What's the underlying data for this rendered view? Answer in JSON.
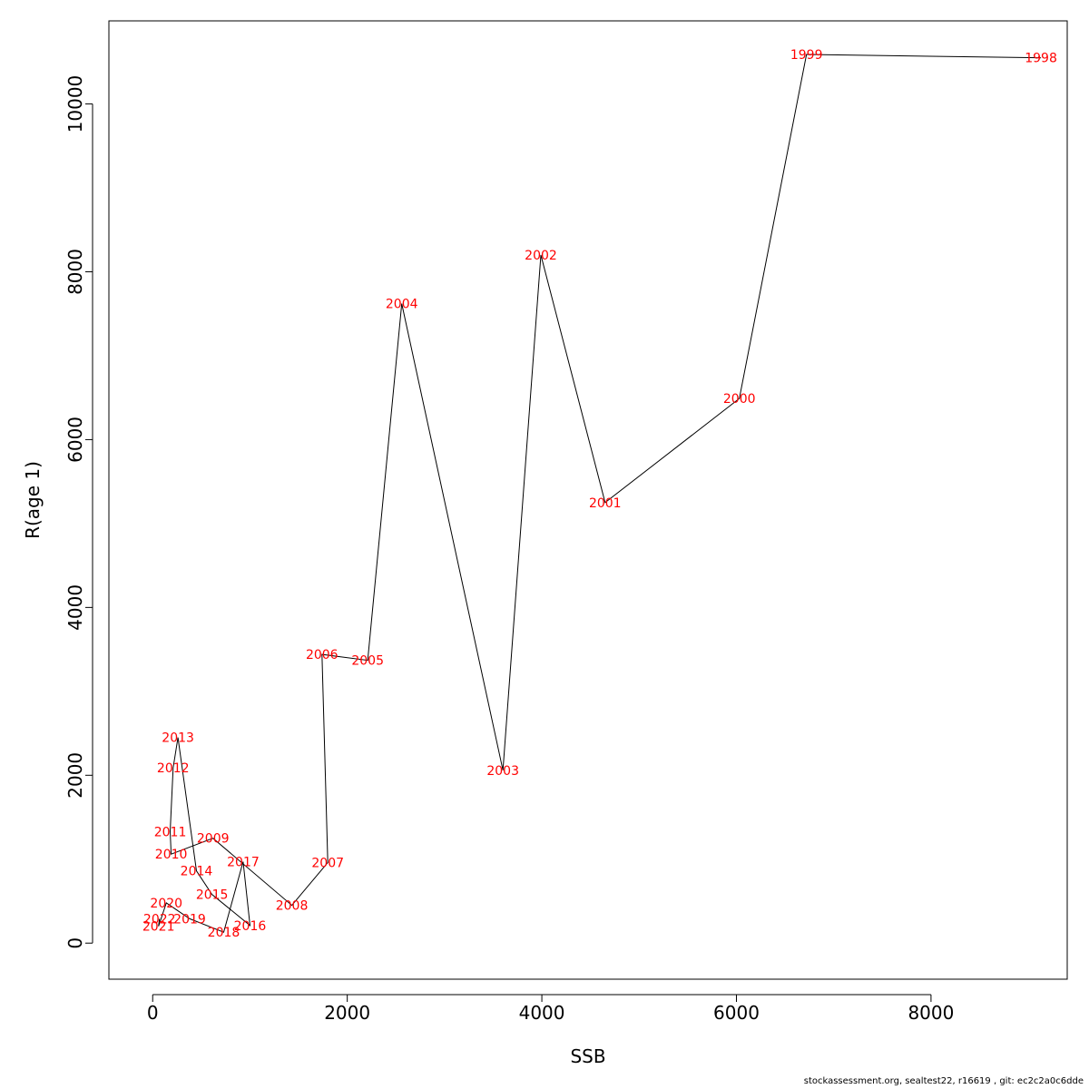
{
  "chart_data": {
    "type": "line",
    "title": "",
    "xlabel": "SSB",
    "ylabel": "R(age 1)",
    "xlim": [
      -450,
      9400
    ],
    "ylim": [
      -430,
      10990
    ],
    "xticks": [
      0,
      2000,
      4000,
      6000,
      8000
    ],
    "yticks": [
      0,
      2000,
      4000,
      6000,
      8000,
      10000
    ],
    "x_tick_labels": [
      "0",
      "2000",
      "4000",
      "6000",
      "8000"
    ],
    "y_tick_labels": [
      "0",
      "2000",
      "4000",
      "6000",
      "8000",
      "10000"
    ],
    "grid": false,
    "line_color": "#000000",
    "label_color": "#ff0000",
    "points": [
      {
        "year": "1998",
        "x": 9130,
        "y": 10550
      },
      {
        "year": "1999",
        "x": 6720,
        "y": 10590
      },
      {
        "year": "2000",
        "x": 6030,
        "y": 6490
      },
      {
        "year": "2001",
        "x": 4650,
        "y": 5250
      },
      {
        "year": "2002",
        "x": 3990,
        "y": 8200
      },
      {
        "year": "2003",
        "x": 3600,
        "y": 2060
      },
      {
        "year": "2004",
        "x": 2560,
        "y": 7620
      },
      {
        "year": "2005",
        "x": 2210,
        "y": 3370
      },
      {
        "year": "2006",
        "x": 1740,
        "y": 3440
      },
      {
        "year": "2007",
        "x": 1800,
        "y": 960
      },
      {
        "year": "2008",
        "x": 1430,
        "y": 450
      },
      {
        "year": "2009",
        "x": 620,
        "y": 1250
      },
      {
        "year": "2010",
        "x": 190,
        "y": 1060
      },
      {
        "year": "2011",
        "x": 180,
        "y": 1330
      },
      {
        "year": "2012",
        "x": 210,
        "y": 2090
      },
      {
        "year": "2013",
        "x": 260,
        "y": 2450
      },
      {
        "year": "2014",
        "x": 450,
        "y": 860
      },
      {
        "year": "2015",
        "x": 610,
        "y": 580
      },
      {
        "year": "2016",
        "x": 1000,
        "y": 210
      },
      {
        "year": "2017",
        "x": 930,
        "y": 970
      },
      {
        "year": "2018",
        "x": 730,
        "y": 130
      },
      {
        "year": "2019",
        "x": 380,
        "y": 290
      },
      {
        "year": "2020",
        "x": 140,
        "y": 480
      },
      {
        "year": "2021",
        "x": 60,
        "y": 200
      },
      {
        "year": "2022",
        "x": 70,
        "y": 290
      }
    ]
  },
  "footer_text": "stockassessment.org, sealtest22, r16619 , git: ec2c2a0c6dde"
}
